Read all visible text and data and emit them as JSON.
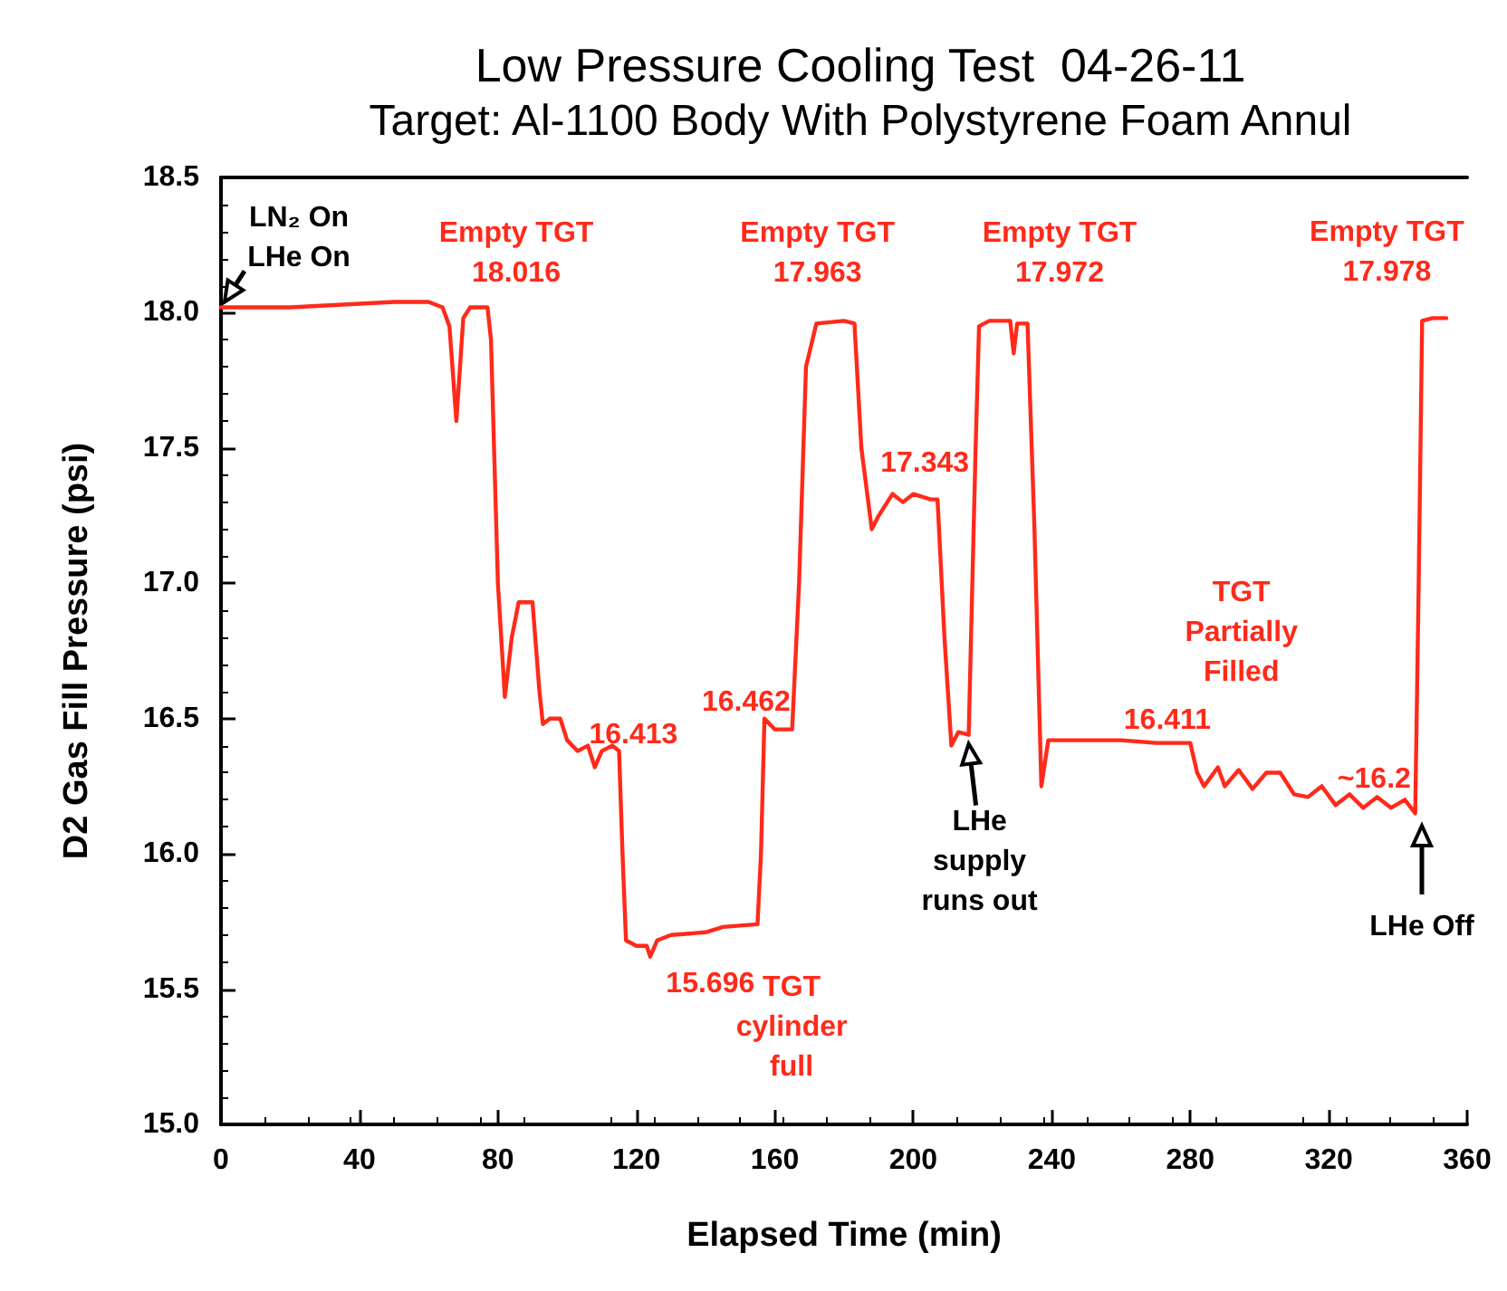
{
  "chart_data": {
    "type": "line",
    "title": "Low Pressure Cooling Test  04-26-11",
    "subtitle": "Target: Al-1100 Body With Polystyrene Foam Annul",
    "xlabel": "Elapsed Time (min)",
    "ylabel": "D2 Gas Fill Pressure (psi)",
    "x": [
      0,
      20,
      50,
      60,
      64,
      66,
      68,
      70,
      72,
      77,
      78,
      80,
      82,
      84,
      86,
      90,
      92,
      93,
      95,
      98,
      100,
      103,
      106,
      108,
      110,
      113,
      115,
      116,
      117,
      120,
      123,
      124,
      126,
      130,
      140,
      145,
      155,
      156,
      157,
      160,
      165,
      167,
      169,
      172,
      180,
      183,
      185,
      188,
      190,
      194,
      197,
      200,
      205,
      207,
      209,
      211,
      213,
      216,
      218,
      219,
      222,
      228,
      229,
      230,
      233,
      235,
      237,
      239,
      260,
      270,
      280,
      282,
      284,
      288,
      290,
      294,
      298,
      302,
      306,
      310,
      314,
      318,
      322,
      326,
      330,
      334,
      338,
      342,
      345,
      346,
      347,
      350,
      354
    ],
    "series": [
      {
        "color": "#ff2a1a",
        "values": [
          18.02,
          18.02,
          18.04,
          18.04,
          18.02,
          17.95,
          17.6,
          17.98,
          18.02,
          18.02,
          17.9,
          17.0,
          16.58,
          16.8,
          16.93,
          16.93,
          16.6,
          16.48,
          16.5,
          16.5,
          16.42,
          16.38,
          16.4,
          16.32,
          16.38,
          16.4,
          16.38,
          16.0,
          15.68,
          15.66,
          15.66,
          15.62,
          15.68,
          15.7,
          15.71,
          15.73,
          15.74,
          16.0,
          16.5,
          16.46,
          16.46,
          17.0,
          17.8,
          17.96,
          17.97,
          17.96,
          17.5,
          17.2,
          17.25,
          17.33,
          17.3,
          17.33,
          17.31,
          17.31,
          16.8,
          16.4,
          16.45,
          16.44,
          17.5,
          17.95,
          17.97,
          17.97,
          17.85,
          17.96,
          17.96,
          17.2,
          16.25,
          16.42,
          16.42,
          16.41,
          16.41,
          16.3,
          16.25,
          16.32,
          16.25,
          16.31,
          16.24,
          16.3,
          16.3,
          16.22,
          16.21,
          16.25,
          16.18,
          16.22,
          16.17,
          16.21,
          16.17,
          16.2,
          16.15,
          17.0,
          17.97,
          17.98,
          17.98
        ]
      }
    ],
    "xlim": [
      0,
      360
    ],
    "xticks": [
      0,
      40,
      80,
      120,
      160,
      200,
      240,
      280,
      320,
      360
    ],
    "ylim": [
      15,
      18.5
    ],
    "yticks": [
      {
        "value": 15,
        "label": "15.0"
      },
      15.5,
      {
        "value": 16,
        "label": "16.0"
      },
      16.5,
      {
        "value": 17,
        "label": "17.0"
      },
      17.5,
      {
        "value": 18,
        "label": "18.0"
      },
      18.5
    ],
    "grid": false,
    "marker": "none",
    "annotations": [
      {
        "text": "LN₂ On\nLHe On",
        "x": 0,
        "y": 18.02
      },
      "Empty TGT\n18.016",
      {
        "text": "Empty TGT\n17.963",
        "x": 176,
        "y": 17.97
      },
      {
        "text": "Empty TGT\n17.972",
        "x": 225,
        "y": 17.97
      },
      {
        "text": "Empty TGT\n17.978",
        "x": 352,
        "y": 17.98
      },
      {
        "text": "16.413",
        "x": 105,
        "y": 16.4
      },
      {
        "text": "15.696",
        "x": 122,
        "y": 15.66
      },
      {
        "text": "TGT\ncylinder\nfull",
        "x": 157,
        "y": 15.74
      },
      {
        "text": "16.462",
        "x": 158,
        "y": 16.46
      },
      {
        "text": "17.343",
        "x": 196,
        "y": 17.33
      },
      {
        "text": "LHe\nsupply\nruns out",
        "x": 216,
        "y": 16.42
      },
      {
        "text": "TGT\nPartially\nFilled",
        "x": 300,
        "y": 16.3
      },
      {
        "text": "16.411",
        "x": 265,
        "y": 16.42
      },
      {
        "text": "~16.2",
        "x": 330,
        "y": 16.18
      },
      "LHe Off"
    ]
  }
}
